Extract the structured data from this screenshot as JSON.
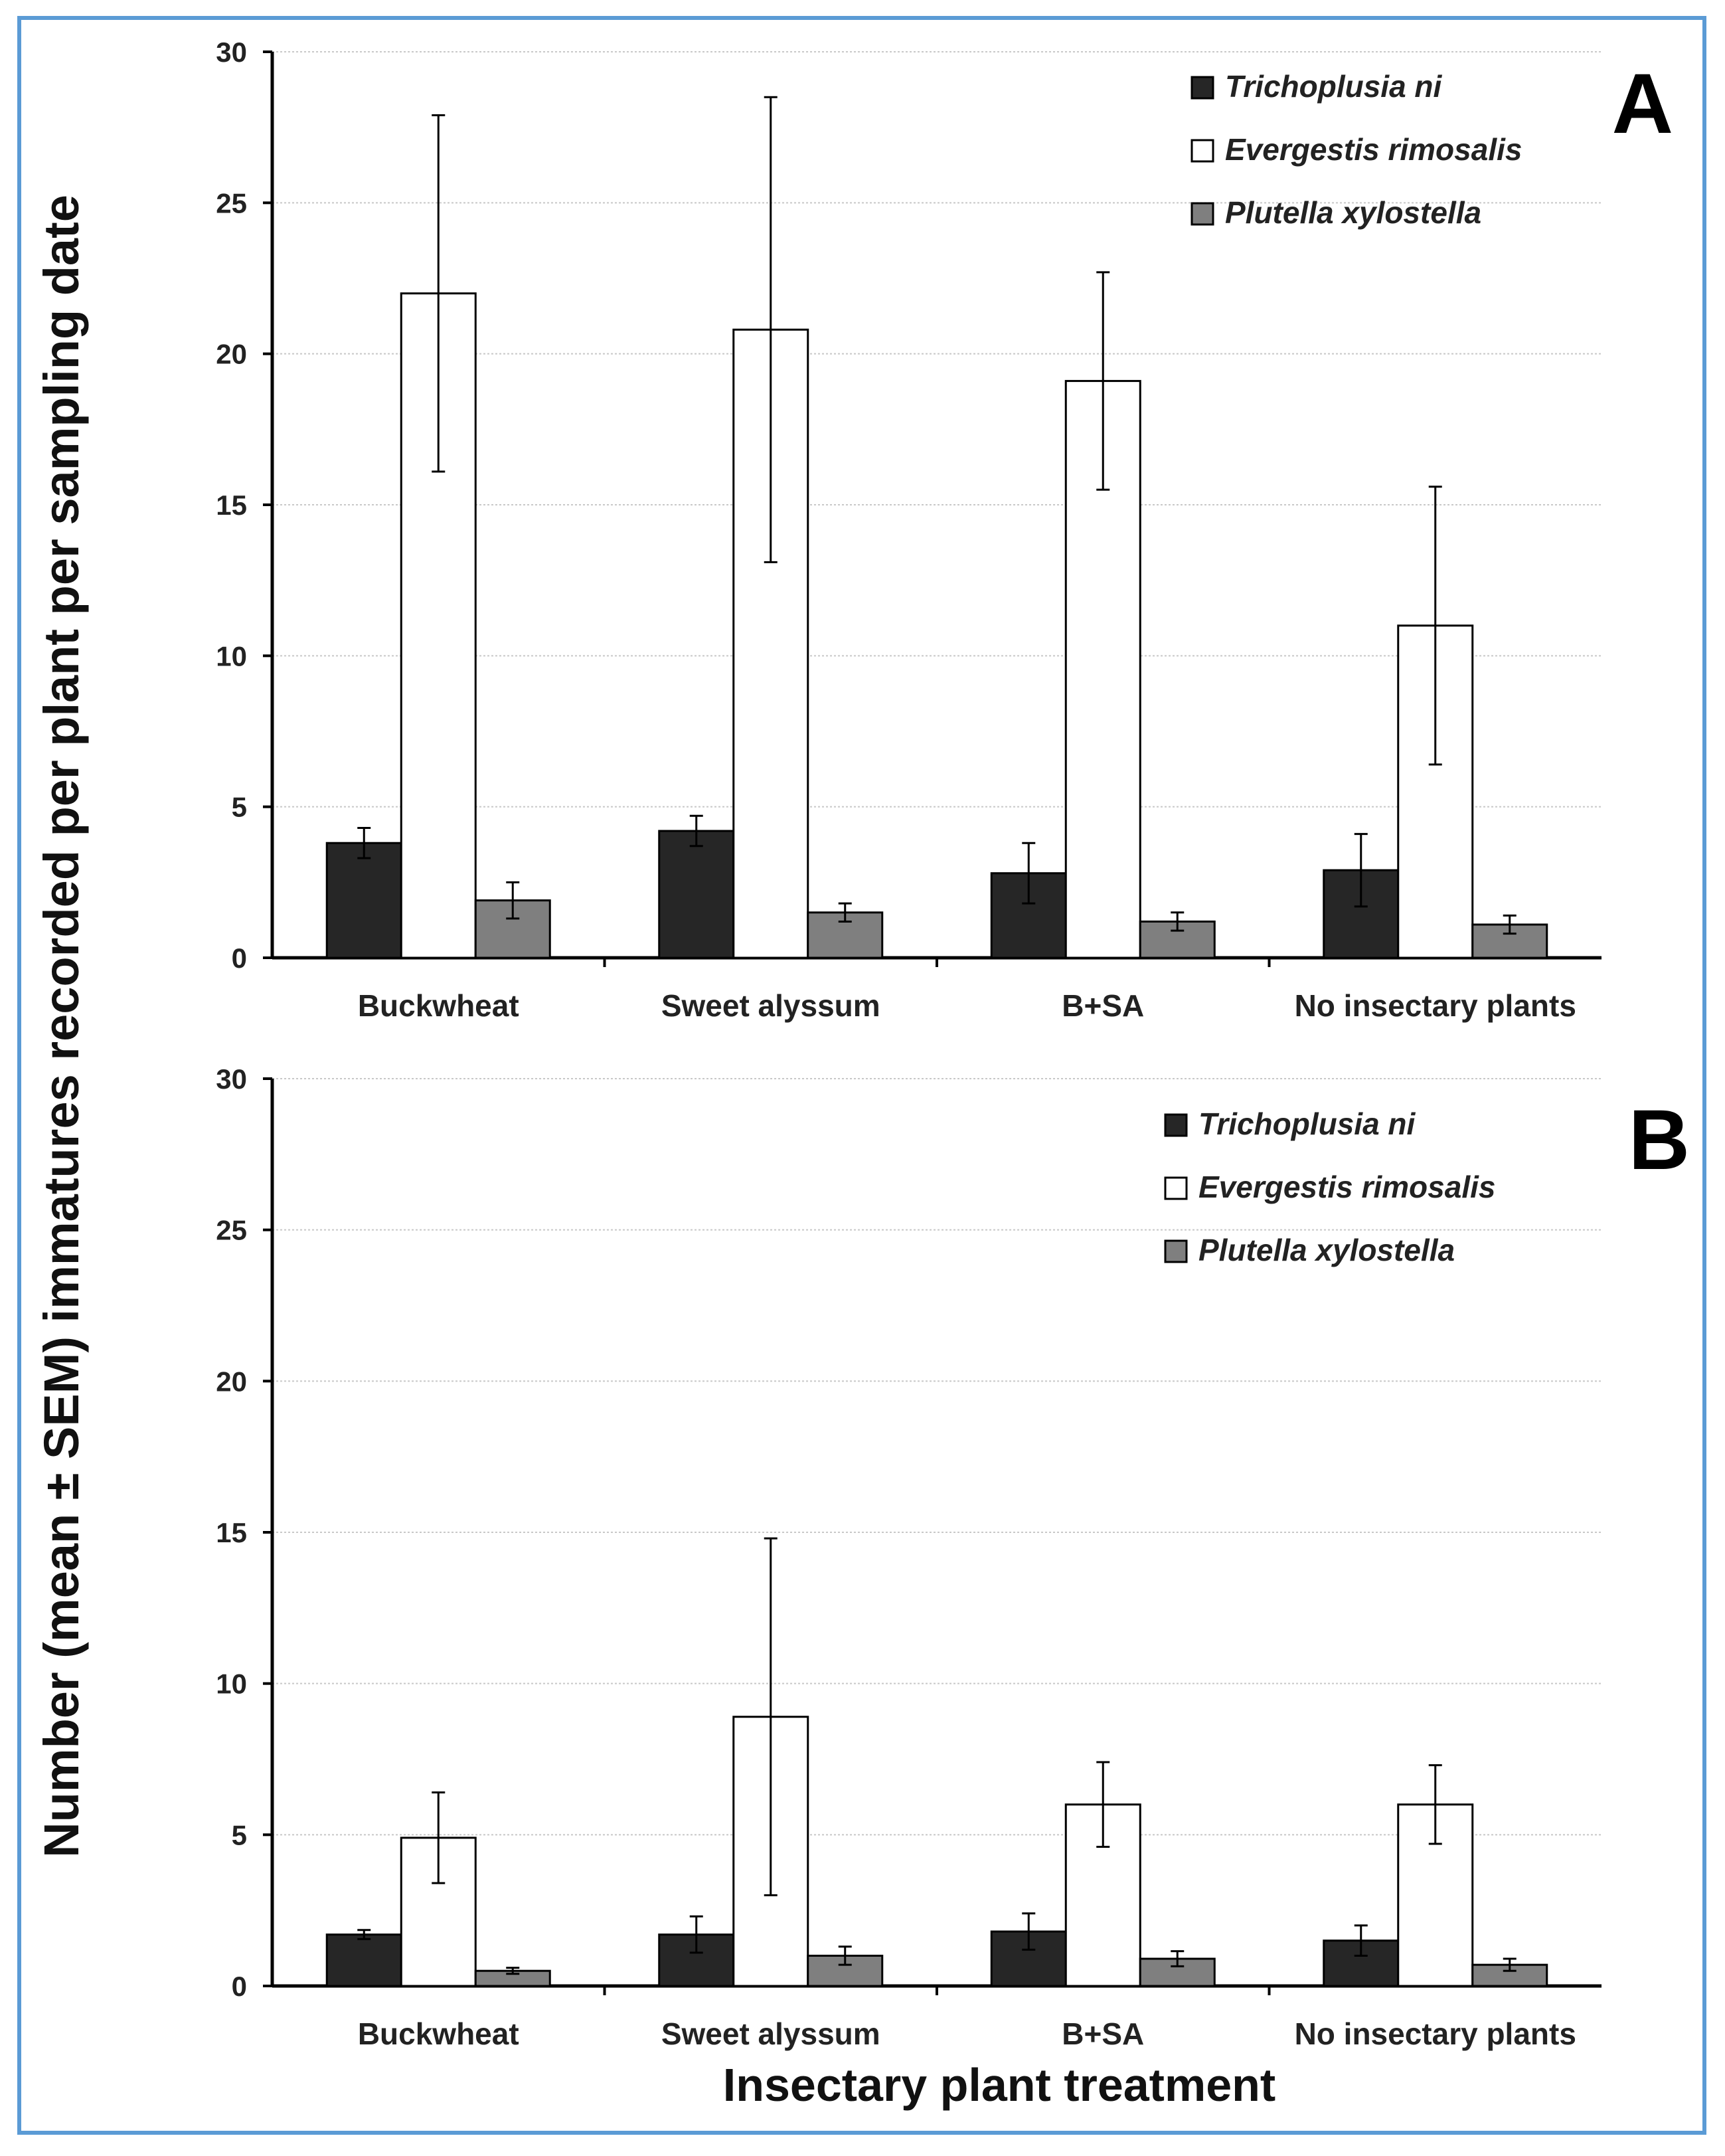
{
  "y_axis_label": "Number (mean ± SEM) immatures recorded per plant per sampling date",
  "x_axis_label": "Insectary plant treatment",
  "colors": {
    "frame": "#5b9bd5",
    "Trichoplusia ni": "#262626",
    "Evergestis rimosalis": "#ffffff",
    "Plutella xylostella": "#7f7f7f"
  },
  "chart_data": [
    {
      "type": "bar",
      "panel": "A",
      "categories": [
        "Buckwheat",
        "Sweet alyssum",
        "B+SA",
        "No insectary plants"
      ],
      "ylim": [
        0,
        30
      ],
      "yticks": [
        0,
        5,
        10,
        15,
        20,
        25,
        30
      ],
      "grid": true,
      "legend_position": "top-right",
      "series": [
        {
          "name": "Trichoplusia ni",
          "values": [
            3.8,
            4.2,
            2.8,
            2.9
          ],
          "errors": [
            0.5,
            0.5,
            1.0,
            1.2
          ]
        },
        {
          "name": "Evergestis rimosalis",
          "values": [
            22.0,
            20.8,
            19.1,
            11.0
          ],
          "errors": [
            5.9,
            7.7,
            3.6,
            4.6
          ]
        },
        {
          "name": "Plutella xylostella",
          "values": [
            1.9,
            1.5,
            1.2,
            1.1
          ],
          "errors": [
            0.6,
            0.3,
            0.3,
            0.3
          ]
        }
      ]
    },
    {
      "type": "bar",
      "panel": "B",
      "categories": [
        "Buckwheat",
        "Sweet alyssum",
        "B+SA",
        "No insectary plants"
      ],
      "ylim": [
        0,
        30
      ],
      "yticks": [
        0,
        5,
        10,
        15,
        20,
        25,
        30
      ],
      "grid": true,
      "legend_position": "top-right",
      "series": [
        {
          "name": "Trichoplusia ni",
          "values": [
            1.7,
            1.7,
            1.8,
            1.5
          ],
          "errors": [
            0.15,
            0.6,
            0.6,
            0.5
          ]
        },
        {
          "name": "Evergestis rimosalis",
          "values": [
            4.9,
            8.9,
            6.0,
            6.0
          ],
          "errors": [
            1.5,
            5.9,
            1.4,
            1.3
          ]
        },
        {
          "name": "Plutella xylostella",
          "values": [
            0.5,
            1.0,
            0.9,
            0.7
          ],
          "errors": [
            0.1,
            0.3,
            0.25,
            0.2
          ]
        }
      ]
    }
  ]
}
